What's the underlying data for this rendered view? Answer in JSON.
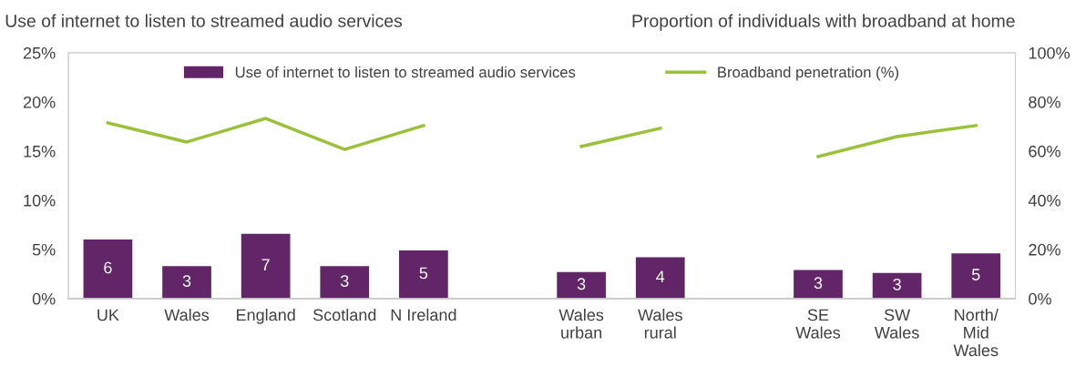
{
  "chart_data": {
    "type": "bar",
    "ylabel": "Use of internet to listen to streamed audio services",
    "y2label": "Proportion of individuals with broadband at home",
    "categories": [
      "UK",
      "Wales",
      "England",
      "Scotland",
      "N Ireland",
      null,
      "Wales\nurban",
      "Wales\nrural",
      null,
      "SE\nWales",
      "SW\nWales",
      "North/\nMid\nWales"
    ],
    "series": [
      {
        "name": "Use of internet to listen to streamed audio services",
        "color": "#622568",
        "values": [
          6.0,
          3.3,
          6.6,
          3.3,
          4.9,
          null,
          2.7,
          4.2,
          null,
          2.9,
          2.6,
          4.6
        ],
        "value_labels": [
          "6",
          "3",
          "7",
          "3",
          "5",
          null,
          "3",
          "4",
          null,
          "3",
          "3",
          "5"
        ]
      },
      {
        "name": "Broadband penetration (%)",
        "type": "line",
        "axis": "y2",
        "color": "#9bc03a",
        "values": [
          71.5,
          63.7,
          73.3,
          60.7,
          70.4,
          null,
          61.9,
          69.3,
          null,
          57.8,
          65.9,
          70.4
        ]
      }
    ],
    "ylim": [
      0,
      25
    ],
    "yticks": [
      {
        "value": 0,
        "label": "0%"
      },
      {
        "value": 5,
        "label": "5%"
      },
      {
        "value": 10,
        "label": "10%"
      },
      {
        "value": 15,
        "label": "15%"
      },
      {
        "value": 20,
        "label": "20%"
      },
      {
        "value": 25,
        "label": "25%"
      }
    ],
    "y2lim": [
      0,
      100
    ],
    "y2ticks": [
      {
        "value": 0,
        "label": "0%"
      },
      {
        "value": 20,
        "label": "20%"
      },
      {
        "value": 40,
        "label": "40%"
      },
      {
        "value": 60,
        "label": "60%"
      },
      {
        "value": 80,
        "label": "80%"
      },
      {
        "value": 100,
        "label": "100%"
      }
    ],
    "legend": "top",
    "grid": false,
    "marker": "none",
    "line_style": "solid"
  }
}
